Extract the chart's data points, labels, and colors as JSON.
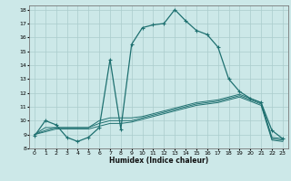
{
  "xlabel": "Humidex (Indice chaleur)",
  "bg_color": "#cce8e8",
  "grid_color": "#aacccc",
  "line_color": "#1e7070",
  "xlim": [
    -0.5,
    23.5
  ],
  "ylim": [
    8,
    18.3
  ],
  "yticks": [
    8,
    9,
    10,
    11,
    12,
    13,
    14,
    15,
    16,
    17,
    18
  ],
  "xticks": [
    0,
    1,
    2,
    3,
    4,
    5,
    6,
    7,
    8,
    9,
    10,
    11,
    12,
    13,
    14,
    15,
    16,
    17,
    18,
    19,
    20,
    21,
    22,
    23
  ],
  "line1_x": [
    0,
    1,
    2,
    3,
    4,
    5,
    6,
    7,
    8,
    9,
    10,
    11,
    12,
    13,
    14,
    15,
    16,
    17,
    18,
    19,
    20,
    21,
    22,
    23
  ],
  "line1_y": [
    8.9,
    10.0,
    9.7,
    8.8,
    8.5,
    8.8,
    9.5,
    14.4,
    9.4,
    15.5,
    16.7,
    16.9,
    17.0,
    18.0,
    17.2,
    16.5,
    16.2,
    15.3,
    13.0,
    12.1,
    11.6,
    11.3,
    9.3,
    8.7
  ],
  "line2_x": [
    0,
    1,
    2,
    3,
    4,
    5,
    6,
    7,
    8,
    9,
    10,
    11,
    12,
    13,
    14,
    15,
    16,
    17,
    18,
    19,
    20,
    21,
    22,
    23
  ],
  "line2_y": [
    9.0,
    9.5,
    9.5,
    9.5,
    9.5,
    9.5,
    10.0,
    10.2,
    10.2,
    10.2,
    10.3,
    10.5,
    10.7,
    10.9,
    11.1,
    11.3,
    11.4,
    11.5,
    11.7,
    11.9,
    11.6,
    11.3,
    8.8,
    8.7
  ],
  "line3_x": [
    0,
    1,
    2,
    3,
    4,
    5,
    6,
    7,
    8,
    9,
    10,
    11,
    12,
    13,
    14,
    15,
    16,
    17,
    18,
    19,
    20,
    21,
    22,
    23
  ],
  "line3_y": [
    9.0,
    9.3,
    9.5,
    9.5,
    9.5,
    9.5,
    9.8,
    10.0,
    10.0,
    10.0,
    10.2,
    10.4,
    10.6,
    10.8,
    11.0,
    11.2,
    11.3,
    11.4,
    11.6,
    11.8,
    11.5,
    11.2,
    8.7,
    8.6
  ],
  "line4_x": [
    0,
    1,
    2,
    3,
    4,
    5,
    6,
    7,
    8,
    9,
    10,
    11,
    12,
    13,
    14,
    15,
    16,
    17,
    18,
    19,
    20,
    21,
    22,
    23
  ],
  "line4_y": [
    9.0,
    9.2,
    9.4,
    9.4,
    9.4,
    9.4,
    9.6,
    9.8,
    9.8,
    9.9,
    10.1,
    10.3,
    10.5,
    10.7,
    10.9,
    11.1,
    11.2,
    11.3,
    11.5,
    11.7,
    11.4,
    11.1,
    8.6,
    8.5
  ]
}
